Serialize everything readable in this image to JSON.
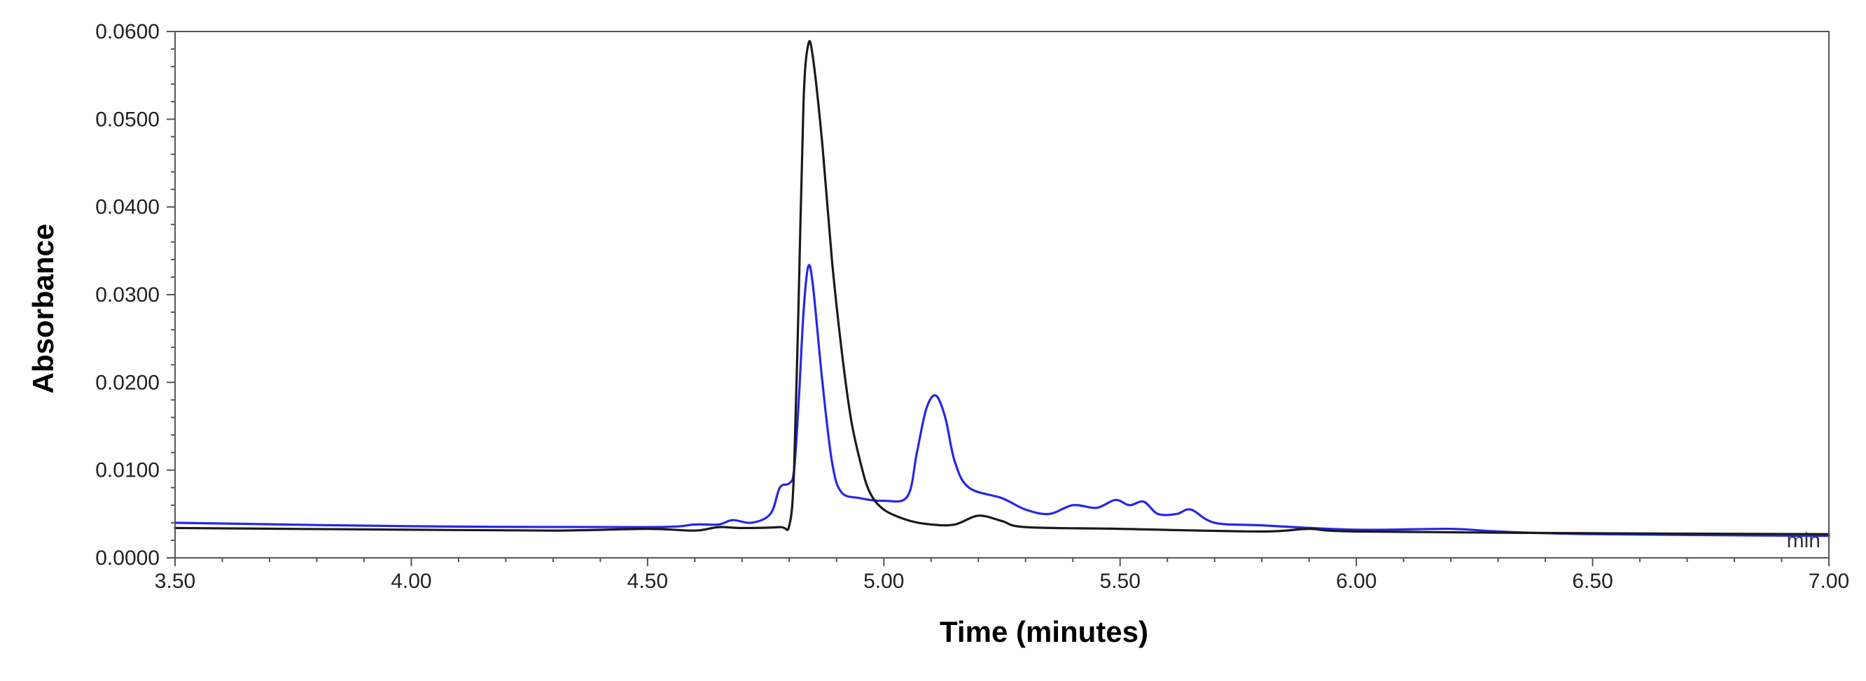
{
  "chart_data": {
    "type": "line",
    "title": "",
    "xlabel": "Time (minutes)",
    "ylabel": "Absorbance",
    "unit_label": "min",
    "xlim": [
      3.5,
      7.0
    ],
    "ylim": [
      0.0,
      0.06
    ],
    "x_ticks": [
      "3.50",
      "4.00",
      "4.50",
      "5.00",
      "5.50",
      "6.00",
      "6.50",
      "7.00"
    ],
    "y_ticks": [
      "0.0000",
      "0.0100",
      "0.0200",
      "0.0300",
      "0.0400",
      "0.0500",
      "0.0600"
    ],
    "grid": false,
    "legend": "none",
    "series": [
      {
        "color": "#1a1a1a",
        "points": [
          [
            3.5,
            0.0034
          ],
          [
            4.0,
            0.0032
          ],
          [
            4.3,
            0.0031
          ],
          [
            4.5,
            0.0033
          ],
          [
            4.6,
            0.0031
          ],
          [
            4.65,
            0.0035
          ],
          [
            4.7,
            0.0034
          ],
          [
            4.78,
            0.0035
          ],
          [
            4.8,
            0.0037
          ],
          [
            4.81,
            0.01
          ],
          [
            4.82,
            0.03
          ],
          [
            4.83,
            0.052
          ],
          [
            4.84,
            0.0585
          ],
          [
            4.85,
            0.057
          ],
          [
            4.87,
            0.047
          ],
          [
            4.89,
            0.034
          ],
          [
            4.91,
            0.024
          ],
          [
            4.93,
            0.016
          ],
          [
            4.95,
            0.011
          ],
          [
            4.97,
            0.0075
          ],
          [
            5.0,
            0.0055
          ],
          [
            5.05,
            0.0043
          ],
          [
            5.1,
            0.0038
          ],
          [
            5.15,
            0.0038
          ],
          [
            5.2,
            0.0048
          ],
          [
            5.25,
            0.0042
          ],
          [
            5.3,
            0.0035
          ],
          [
            5.5,
            0.0033
          ],
          [
            5.8,
            0.003
          ],
          [
            5.9,
            0.0033
          ],
          [
            6.0,
            0.003
          ],
          [
            6.5,
            0.0028
          ],
          [
            7.0,
            0.0027
          ]
        ]
      },
      {
        "color": "#2727e6",
        "points": [
          [
            3.5,
            0.004
          ],
          [
            4.0,
            0.0036
          ],
          [
            4.5,
            0.0035
          ],
          [
            4.6,
            0.0038
          ],
          [
            4.65,
            0.0038
          ],
          [
            4.68,
            0.0043
          ],
          [
            4.72,
            0.004
          ],
          [
            4.76,
            0.005
          ],
          [
            4.78,
            0.008
          ],
          [
            4.8,
            0.0085
          ],
          [
            4.81,
            0.01
          ],
          [
            4.82,
            0.018
          ],
          [
            4.83,
            0.028
          ],
          [
            4.84,
            0.0332
          ],
          [
            4.85,
            0.031
          ],
          [
            4.87,
            0.02
          ],
          [
            4.89,
            0.011
          ],
          [
            4.91,
            0.0075
          ],
          [
            4.95,
            0.0068
          ],
          [
            5.0,
            0.0065
          ],
          [
            5.05,
            0.007
          ],
          [
            5.07,
            0.012
          ],
          [
            5.09,
            0.017
          ],
          [
            5.11,
            0.0185
          ],
          [
            5.13,
            0.016
          ],
          [
            5.15,
            0.011
          ],
          [
            5.18,
            0.008
          ],
          [
            5.25,
            0.0068
          ],
          [
            5.3,
            0.0055
          ],
          [
            5.35,
            0.005
          ],
          [
            5.4,
            0.006
          ],
          [
            5.45,
            0.0057
          ],
          [
            5.49,
            0.0066
          ],
          [
            5.52,
            0.006
          ],
          [
            5.55,
            0.0064
          ],
          [
            5.58,
            0.005
          ],
          [
            5.62,
            0.005
          ],
          [
            5.65,
            0.0055
          ],
          [
            5.7,
            0.004
          ],
          [
            5.8,
            0.0037
          ],
          [
            6.0,
            0.0032
          ],
          [
            6.2,
            0.0033
          ],
          [
            6.3,
            0.003
          ],
          [
            6.5,
            0.0027
          ],
          [
            7.0,
            0.0025
          ]
        ]
      }
    ]
  }
}
